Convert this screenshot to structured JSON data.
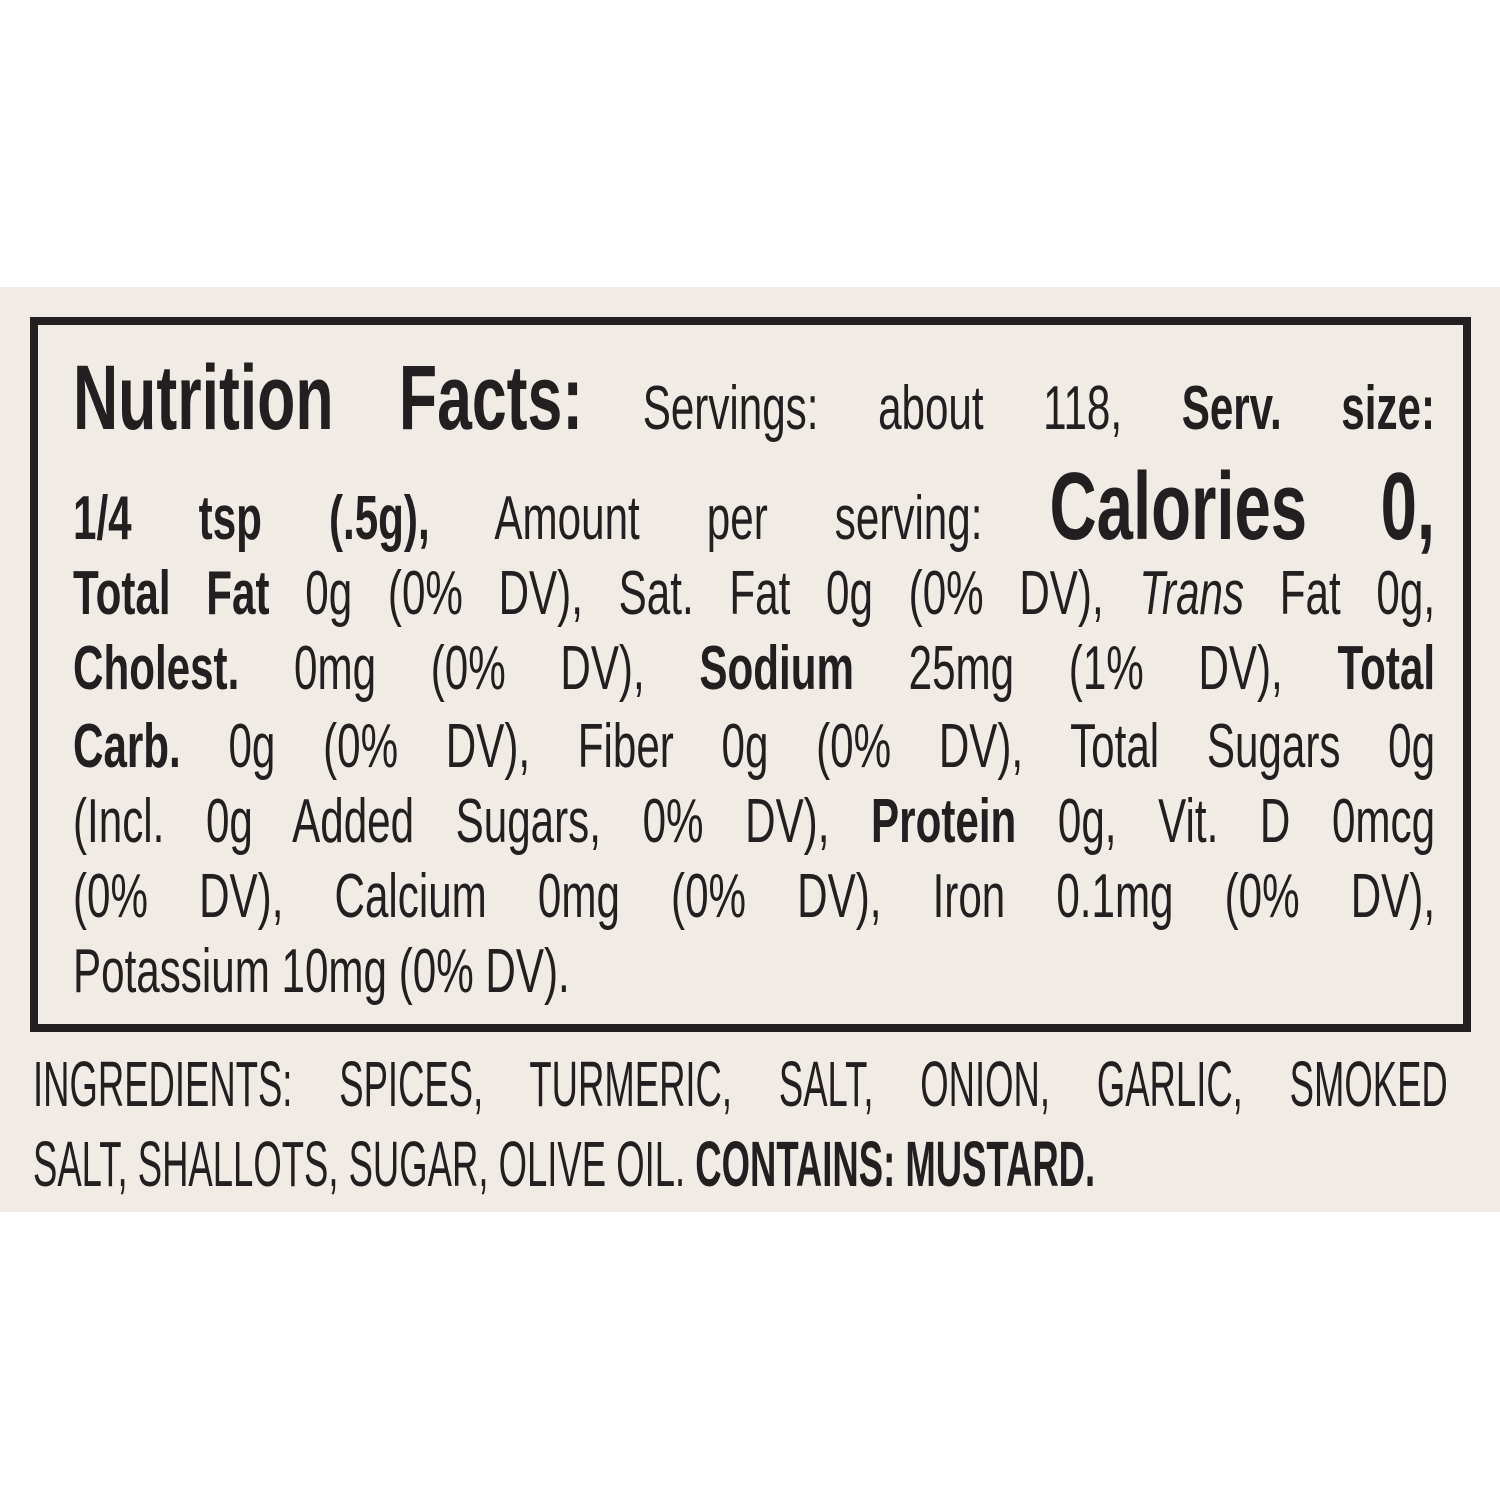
{
  "nutrition": {
    "title": "Nutrition Facts:",
    "servings": " Servings: about 118, ",
    "serv_size_label": "Serv. size:",
    "serv_size_value": "1/4 tsp (.5g),",
    "amount_per_serving": " Amount per serving: ",
    "calories": "Calories 0,",
    "total_fat_label": "Total Fat",
    "total_fat_value": " 0g (0% DV), Sat. Fat 0g (0% DV), ",
    "trans_label": "Trans",
    "trans_value": " Fat 0g,",
    "cholest_label": "Cholest.",
    "cholest_value": " 0mg (0% DV), ",
    "sodium_label": "Sodium",
    "sodium_value": " 25mg (1% DV), ",
    "total_carb_label_1": "Total",
    "total_carb_label_2": "Carb.",
    "carb_value": " 0g (0% DV), Fiber 0g (0% DV), Total Sugars 0g",
    "added_sugars": "(Incl. 0g Added Sugars, 0% DV), ",
    "protein_label": "Protein",
    "protein_value": " 0g, Vit. D 0mcg",
    "line7": "(0% DV), Calcium 0mg (0% DV), Iron 0.1mg (0% DV),",
    "line8": "Potassium 10mg (0% DV)."
  },
  "ingredients": {
    "line1": "INGREDIENTS: SPICES, TURMERIC, SALT, ONION, GARLIC, SMOKED",
    "line2": "SALT, SHALLOTS, SUGAR, OLIVE OIL. ",
    "contains": "CONTAINS: MUSTARD."
  },
  "colors": {
    "background": "#f0ebe5",
    "text": "#231f20"
  }
}
